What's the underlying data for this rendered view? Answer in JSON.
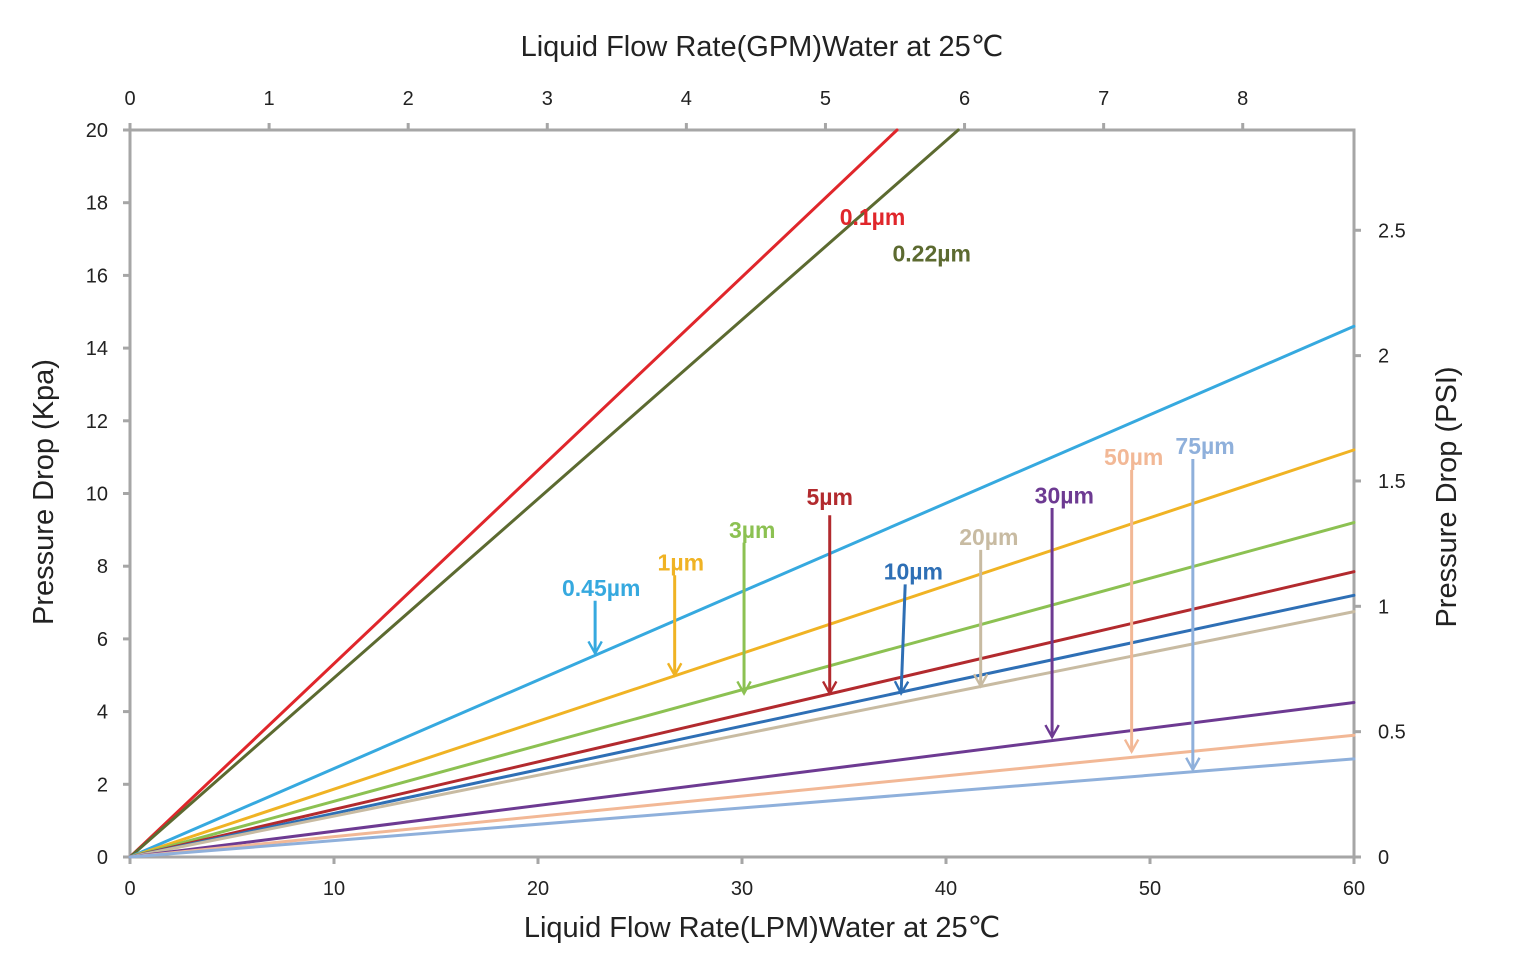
{
  "chart_data": {
    "type": "line",
    "title": "",
    "xlabel": "Liquid Flow Rate(LPM)Water at 25℃",
    "x2label": "Liquid Flow Rate(GPM)Water at 25℃",
    "ylabel": "Pressure Drop (Kpa)",
    "y2label": "Pressure Drop (PSI)",
    "xlim": [
      0,
      60
    ],
    "ylim": [
      0,
      20
    ],
    "x2lim": [
      0,
      8.8
    ],
    "y2lim": [
      0,
      2.9
    ],
    "x_ticks": [
      "0",
      "10",
      "20",
      "30",
      "40",
      "50",
      "60"
    ],
    "y_ticks": [
      "0",
      "2",
      "4",
      "6",
      "8",
      "10",
      "12",
      "14",
      "16",
      "18",
      "20"
    ],
    "x2_ticks": [
      "0",
      "1",
      "2",
      "3",
      "4",
      "5",
      "6",
      "7",
      "8"
    ],
    "y2_ticks": [
      "0",
      "0.5",
      "1",
      "1.5",
      "2",
      "2.5"
    ],
    "grid": false,
    "series": [
      {
        "name": "0.1µm",
        "color": "#e0262b",
        "x": [
          0,
          37.6
        ],
        "y": [
          0,
          20
        ],
        "label_at": [
          36.4,
          17.6
        ],
        "label_anchor": "middle"
      },
      {
        "name": "0.22µm",
        "color": "#5c6a30",
        "x": [
          0,
          40.6
        ],
        "y": [
          0,
          20
        ],
        "label_at": [
          39.3,
          16.6
        ],
        "label_anchor": "middle"
      },
      {
        "name": "0.45µm",
        "color": "#36a9df",
        "x": [
          0,
          60
        ],
        "y": [
          0,
          14.6
        ],
        "label_at": [
          23.1,
          7.4
        ],
        "label_anchor": "middle",
        "arrow_from": [
          22.8,
          7.05
        ],
        "arrow_to": [
          22.8,
          5.6
        ]
      },
      {
        "name": "1µm",
        "color": "#f0b324",
        "x": [
          0,
          60
        ],
        "y": [
          0,
          11.2
        ],
        "label_at": [
          27.0,
          8.1
        ],
        "label_anchor": "middle",
        "arrow_from": [
          26.7,
          7.75
        ],
        "arrow_to": [
          26.7,
          5.0
        ]
      },
      {
        "name": "3µm",
        "color": "#8cc152",
        "x": [
          0,
          60
        ],
        "y": [
          0,
          9.2
        ],
        "label_at": [
          30.5,
          9.0
        ],
        "label_anchor": "middle",
        "arrow_from": [
          30.1,
          8.65
        ],
        "arrow_to": [
          30.1,
          4.5
        ]
      },
      {
        "name": "5µm",
        "color": "#b22a2e",
        "x": [
          0,
          60
        ],
        "y": [
          0,
          7.85
        ],
        "label_at": [
          34.3,
          9.9
        ],
        "label_anchor": "middle",
        "arrow_from": [
          34.3,
          9.4
        ],
        "arrow_to": [
          34.3,
          4.5
        ]
      },
      {
        "name": "10µm",
        "color": "#2e6fb5",
        "x": [
          0,
          60
        ],
        "y": [
          0,
          7.2
        ],
        "label_at": [
          38.4,
          7.85
        ],
        "label_anchor": "middle",
        "arrow_from": [
          38.0,
          7.5
        ],
        "arrow_to": [
          37.8,
          4.5
        ]
      },
      {
        "name": "20µm",
        "color": "#c8bba2",
        "x": [
          0,
          60
        ],
        "y": [
          0,
          6.75
        ],
        "label_at": [
          42.1,
          8.8
        ],
        "label_anchor": "middle",
        "arrow_from": [
          41.7,
          8.45
        ],
        "arrow_to": [
          41.7,
          4.7
        ]
      },
      {
        "name": "30µm",
        "color": "#6d3a92",
        "x": [
          0,
          60
        ],
        "y": [
          0,
          4.25
        ],
        "label_at": [
          45.8,
          9.95
        ],
        "label_anchor": "middle",
        "arrow_from": [
          45.2,
          9.6
        ],
        "arrow_to": [
          45.2,
          3.3
        ]
      },
      {
        "name": "50µm",
        "color": "#f2b896",
        "x": [
          0,
          60
        ],
        "y": [
          0,
          3.35
        ],
        "label_at": [
          49.2,
          11.0
        ],
        "label_anchor": "middle",
        "arrow_from": [
          49.1,
          10.65
        ],
        "arrow_to": [
          49.1,
          2.9
        ]
      },
      {
        "name": "75µm",
        "color": "#8fb0db",
        "x": [
          0,
          60
        ],
        "y": [
          0,
          2.7
        ],
        "label_at": [
          52.7,
          11.3
        ],
        "label_anchor": "middle",
        "arrow_from": [
          52.1,
          10.95
        ],
        "arrow_to": [
          52.1,
          2.4
        ]
      }
    ]
  }
}
